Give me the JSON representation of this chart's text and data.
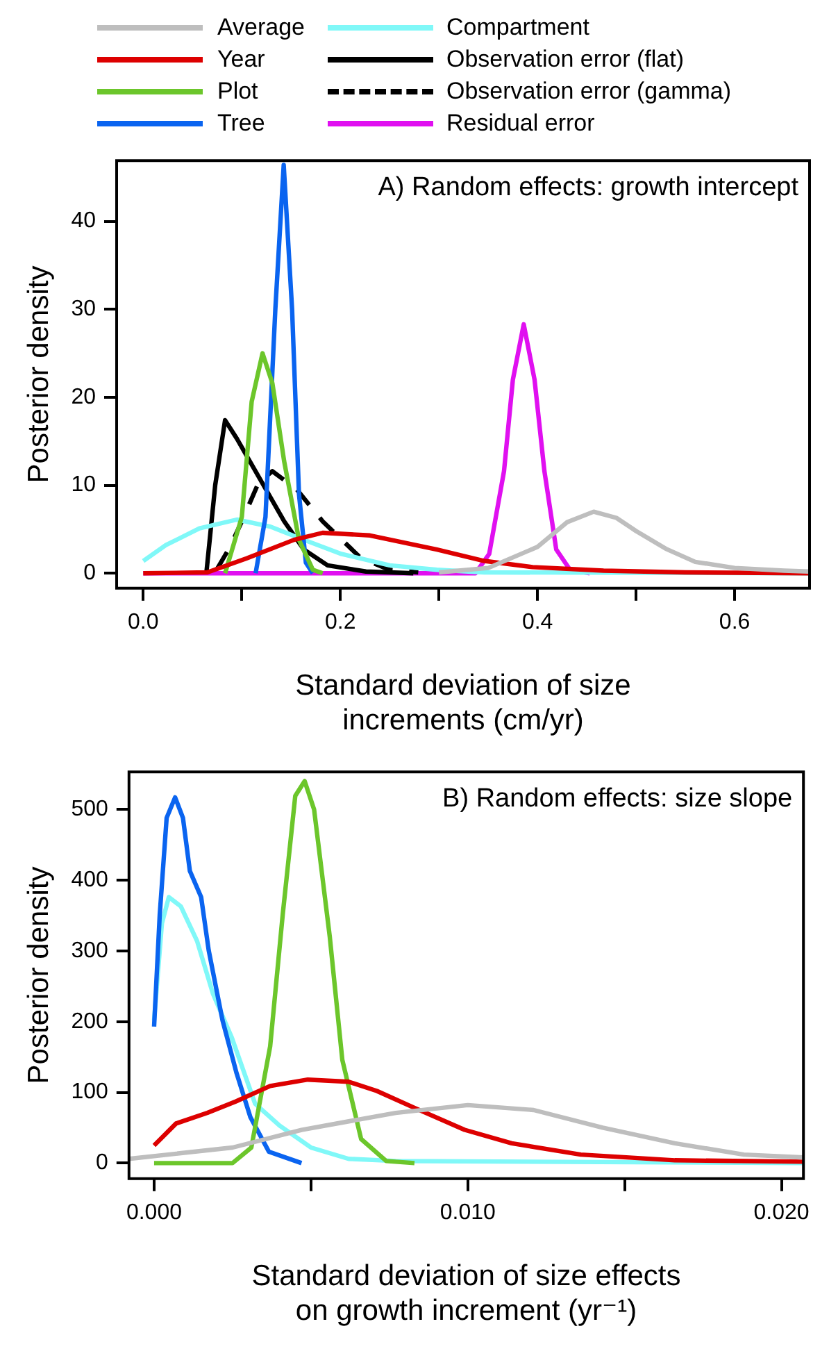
{
  "chart_data": [
    {
      "type": "line",
      "title": "A) Random effects: growth intercept",
      "xlabel": "Standard deviation of size increments (cm/yr)",
      "ylabel": "Posterior density",
      "xlim": [
        -0.027,
        0.676
      ],
      "xticks": [
        {
          "value": 0,
          "label": "0.0"
        },
        {
          "value": 0.1,
          "label": null
        },
        0.2,
        {
          "value": 0.3,
          "label": null
        },
        0.4,
        {
          "value": 0.5,
          "label": null
        },
        0.6
      ],
      "ylim": [
        -1.7,
        46.9
      ],
      "yticks": [
        0,
        10,
        20,
        30,
        40
      ],
      "grid": false,
      "legend": "top",
      "series": [
        {
          "name": "Average",
          "color": "#bebebe",
          "x": [
            0.3,
            0.35,
            0.4,
            0.43,
            0.457,
            0.48,
            0.5,
            0.53,
            0.56,
            0.6,
            0.65,
            0.676
          ],
          "values": [
            0.1,
            0.6,
            3,
            5.8,
            7.0,
            6.3,
            4.8,
            2.8,
            1.3,
            0.6,
            0.3,
            0.2
          ]
        },
        {
          "name": "Year",
          "color": "#dd0000",
          "x": [
            0.0,
            0.065,
            0.105,
            0.153,
            0.182,
            0.23,
            0.298,
            0.346,
            0.395,
            0.467,
            0.55,
            0.675
          ],
          "values": [
            0,
            0.1,
            1.7,
            3.8,
            4.6,
            4.3,
            2.7,
            1.4,
            0.7,
            0.3,
            0.1,
            0
          ]
        },
        {
          "name": "Plot",
          "color": "#6cc62b",
          "x": [
            0.083,
            0.1,
            0.11,
            0.121,
            0.131,
            0.143,
            0.158,
            0.172,
            0.182
          ],
          "values": [
            0,
            6.4,
            19.5,
            25,
            21.6,
            12.7,
            3.8,
            0.4,
            0
          ]
        },
        {
          "name": "Tree",
          "color": "#0a64f0",
          "x": [
            0.114,
            0.124,
            0.134,
            0.1425,
            0.151,
            0.158,
            0.165,
            0.172
          ],
          "values": [
            0,
            6.4,
            30,
            46.4,
            30,
            9,
            1.2,
            0
          ]
        },
        {
          "name": "Compartment",
          "color": "#80f8f8",
          "x": [
            0.0,
            0.023,
            0.057,
            0.095,
            0.129,
            0.163,
            0.201,
            0.25,
            0.298,
            0.346,
            0.675
          ],
          "values": [
            1.4,
            3.2,
            5.1,
            6.1,
            5.3,
            3.8,
            2.2,
            0.9,
            0.4,
            0.1,
            0
          ]
        },
        {
          "name": "Observation error (flat)",
          "color": "#000000",
          "x": [
            0.064,
            0.073,
            0.083,
            0.095,
            0.119,
            0.143,
            0.163,
            0.187,
            0.226,
            0.274
          ],
          "values": [
            0,
            10,
            17.4,
            15.3,
            10.6,
            5.9,
            2.7,
            0.9,
            0.2,
            0
          ]
        },
        {
          "name": "Observation error (gamma)",
          "color": "#000000",
          "line_style": "dashed",
          "x": [
            0.075,
            0.088,
            0.1,
            0.117,
            0.131,
            0.156,
            0.182,
            0.221,
            0.25,
            0.279
          ],
          "values": [
            0.5,
            3,
            5.9,
            10.3,
            11.6,
            9.5,
            5.9,
            1.7,
            0.4,
            0.1
          ]
        },
        {
          "name": "Residual error",
          "color": "#e010f0",
          "x": [
            0.0,
            0.337,
            0.351,
            0.366,
            0.375,
            0.386,
            0.397,
            0.407,
            0.419,
            0.433,
            0.453
          ],
          "values": [
            0,
            0,
            2.2,
            11.6,
            22,
            28.3,
            22,
            11.6,
            2.7,
            0.4,
            0
          ]
        }
      ]
    },
    {
      "type": "line",
      "title": "B) Random effects: size slope",
      "xlabel": "Standard deviation of size effects on growth increment (yr⁻¹)",
      "ylabel": "Posterior density",
      "xlim": [
        -0.0008,
        0.0207
      ],
      "xticks": [
        {
          "value": 0,
          "label": "0.000"
        },
        {
          "value": 0.005,
          "label": null
        },
        {
          "value": 0.01,
          "label": "0.010"
        },
        {
          "value": 0.015,
          "label": null
        },
        {
          "value": 0.02,
          "label": "0.020"
        }
      ],
      "ylim": [
        -22,
        553
      ],
      "yticks": [
        0,
        100,
        200,
        300,
        400,
        500
      ],
      "grid": false,
      "series": [
        {
          "color": "#bebebe",
          "x": [
            -0.0008,
            0.0025,
            0.0047,
            0.0077,
            0.01,
            0.0121,
            0.0143,
            0.0166,
            0.0188,
            0.0207
          ],
          "values": [
            6,
            22,
            47,
            71,
            82,
            75,
            50,
            28,
            12,
            8
          ]
        },
        {
          "color": "#dd0000",
          "x": [
            0,
            0.0007,
            0.0017,
            0.0026,
            0.0037,
            0.0049,
            0.0062,
            0.0071,
            0.0083,
            0.0099,
            0.0114,
            0.0136,
            0.0166,
            0.0207
          ],
          "values": [
            25,
            56,
            71,
            87,
            109,
            118,
            115,
            102,
            78,
            47,
            28,
            12,
            4,
            2
          ]
        },
        {
          "color": "#6cc62b",
          "x": [
            0,
            0.0025,
            0.0031,
            0.0037,
            0.0041,
            0.0045,
            0.0048,
            0.0051,
            0.0056,
            0.006,
            0.0066,
            0.0074,
            0.0083
          ],
          "values": [
            0,
            0,
            22,
            165,
            351,
            519,
            540,
            500,
            320,
            146,
            34,
            3,
            0
          ]
        },
        {
          "color": "#0a64f0",
          "x": [
            0,
            0.00018,
            0.0004,
            0.00067,
            0.00092,
            0.00114,
            0.0015,
            0.00174,
            0.00218,
            0.00263,
            0.00307,
            0.00366,
            0.0047
          ],
          "values": [
            193,
            351,
            488,
            517,
            488,
            413,
            376,
            301,
            202,
            127,
            65,
            16,
            0
          ]
        },
        {
          "color": "#80f8f8",
          "x": [
            0,
            0.00025,
            0.00047,
            0.00085,
            0.00137,
            0.00188,
            0.00248,
            0.00322,
            0.004,
            0.005,
            0.0062,
            0.0077,
            0.0207
          ],
          "values": [
            202,
            339,
            376,
            363,
            314,
            239,
            177,
            84,
            53,
            22,
            6,
            3,
            0
          ]
        }
      ]
    }
  ]
}
